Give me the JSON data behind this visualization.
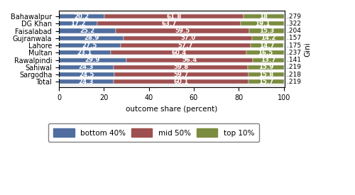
{
  "categories": [
    "Bahawalpur",
    "DG Khan",
    "Faisalabad",
    "Gujranwala",
    "Lahore",
    "Multan",
    "Rawalpindi",
    "Sahiwal",
    "Sargodha",
    "Total"
  ],
  "bottom40": [
    20.2,
    17.2,
    25.2,
    28.9,
    27.5,
    23.1,
    29.9,
    24.3,
    24.5,
    24.3
  ],
  "mid50": [
    61.8,
    63.7,
    59.5,
    57.0,
    57.7,
    60.4,
    56.4,
    59.8,
    59.7,
    60.1
  ],
  "top10": [
    18.0,
    19.1,
    15.3,
    14.2,
    14.7,
    16.5,
    13.7,
    15.9,
    15.8,
    15.7
  ],
  "gini": [
    ".279",
    ".322",
    ".204",
    ".157",
    ".175",
    ".237",
    ".141",
    ".219",
    ".218",
    ".219"
  ],
  "color_bottom40": "#4f6d9e",
  "color_mid50": "#9e5050",
  "color_top10": "#7a8c3e",
  "xlabel": "outcome share (percent)",
  "ylabel": "Gini",
  "legend_labels": [
    "bottom 40%",
    "mid 50%",
    "top 10%"
  ],
  "xlim": [
    0,
    100
  ],
  "bar_height": 0.6,
  "figsize": [
    5.0,
    2.75
  ],
  "dpi": 100,
  "background_color": "#f2f2f2",
  "bar_label_fontsize": 6.2,
  "tick_fontsize": 7.0,
  "xlabel_fontsize": 7.5,
  "legend_fontsize": 7.5,
  "gini_fontsize": 6.5
}
